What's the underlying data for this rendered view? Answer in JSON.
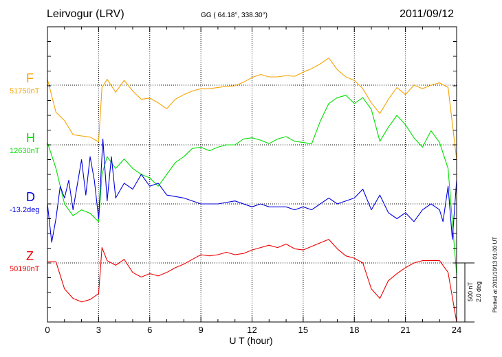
{
  "header": {
    "station": "Leirvogur (LRV)",
    "coords": "GG ( 64.18°, 338.30°)",
    "date": "2011/09/12"
  },
  "side_note": "Plotted at 2011/10/13 01:00 UT",
  "scale_bar": {
    "line1": "500 nT",
    "line2": "2.0 deg"
  },
  "colors": {
    "F": "#f5a300",
    "H": "#00e000",
    "D": "#0000dd",
    "Z": "#ee0000",
    "axis": "#000000",
    "grid": "#000000"
  },
  "chart_data": {
    "type": "line",
    "xlabel": "U T (hour)",
    "xlim": [
      0,
      24
    ],
    "xticks": [
      0,
      3,
      6,
      9,
      12,
      15,
      18,
      21,
      24
    ],
    "grid": "dotted",
    "channels": [
      {
        "name": "F",
        "baseline_label": "51750nT",
        "color": "#f5a300",
        "x": [
          0,
          0.5,
          1,
          1.5,
          2,
          2.5,
          3,
          3.2,
          3.5,
          4,
          4.5,
          5,
          5.5,
          6,
          6.5,
          7,
          7.5,
          8,
          8.5,
          9,
          9.5,
          10,
          10.5,
          11,
          11.5,
          12,
          12.5,
          13,
          13.5,
          14,
          14.5,
          15,
          15.5,
          16,
          16.5,
          17,
          17.5,
          18,
          18.5,
          19,
          19.5,
          20,
          20.5,
          21,
          21.5,
          22,
          22.5,
          23,
          23.5,
          24
        ],
        "values": [
          50,
          -230,
          -300,
          -420,
          -430,
          -440,
          -480,
          -20,
          50,
          -60,
          40,
          -50,
          -120,
          -110,
          -150,
          -200,
          -120,
          -80,
          -50,
          -30,
          -30,
          -20,
          -10,
          -5,
          25,
          65,
          90,
          70,
          70,
          80,
          75,
          110,
          140,
          180,
          230,
          130,
          70,
          40,
          -30,
          -150,
          -240,
          -120,
          -20,
          -80,
          0,
          -30,
          0,
          20,
          -20,
          -630
        ]
      },
      {
        "name": "H",
        "baseline_label": "12630nT",
        "color": "#00e000",
        "x": [
          0,
          0.5,
          1,
          1.5,
          2,
          2.5,
          3,
          3.2,
          3.5,
          4,
          4.5,
          5,
          5.5,
          6,
          6.5,
          7,
          7.5,
          8,
          8.5,
          9,
          9.5,
          10,
          10.5,
          11,
          11.5,
          12,
          12.5,
          13,
          13.5,
          14,
          14.5,
          15,
          15.5,
          16,
          16.5,
          17,
          17.5,
          18,
          18.5,
          19,
          19.5,
          20,
          20.5,
          21,
          21.5,
          22,
          22.5,
          23,
          23.5,
          24
        ],
        "values": [
          20,
          -200,
          -500,
          -600,
          -550,
          -580,
          -650,
          -250,
          -100,
          -200,
          -120,
          -200,
          -250,
          -280,
          -350,
          -250,
          -150,
          -100,
          -30,
          -20,
          -50,
          -20,
          0,
          0,
          50,
          60,
          40,
          10,
          50,
          70,
          30,
          20,
          10,
          200,
          350,
          400,
          420,
          350,
          400,
          300,
          30,
          150,
          250,
          170,
          60,
          -20,
          120,
          20,
          -200,
          -1100
        ]
      },
      {
        "name": "D",
        "baseline_label": "-13.2deg",
        "color": "#0000dd",
        "x": [
          0,
          0.25,
          0.5,
          0.75,
          1,
          1.25,
          1.5,
          2,
          2.25,
          2.5,
          2.75,
          3,
          3.25,
          3.5,
          3.75,
          4,
          4.5,
          5,
          5.5,
          6,
          6.5,
          7,
          8,
          9,
          10,
          11,
          12,
          12.5,
          13,
          14,
          14.5,
          15,
          15.5,
          16,
          16.5,
          17,
          18,
          18.5,
          19,
          19.5,
          20,
          20.5,
          21,
          21.5,
          22,
          22.5,
          23,
          23.2,
          23.5,
          23.75,
          24
        ],
        "values": [
          0.0,
          -1.3,
          -0.5,
          0.6,
          0.2,
          0.8,
          -0.2,
          1.5,
          0.3,
          1.6,
          0.8,
          -0.5,
          2.2,
          0.1,
          1.6,
          0.2,
          0.7,
          0.5,
          1.0,
          0.6,
          0.7,
          0.3,
          0.2,
          0.0,
          0.0,
          0.1,
          -0.1,
          0.0,
          -0.1,
          -0.1,
          -0.2,
          -0.1,
          -0.2,
          0.0,
          0.2,
          0.0,
          0.2,
          0.5,
          -0.2,
          0.3,
          -0.3,
          -0.5,
          -0.3,
          -0.6,
          -0.2,
          0.0,
          -0.2,
          -0.6,
          0.6,
          -1.2,
          0.8
        ]
      },
      {
        "name": "Z",
        "baseline_label": "50190nT",
        "color": "#ee0000",
        "x": [
          0,
          0.5,
          1,
          1.5,
          2,
          2.5,
          3,
          3.2,
          3.5,
          4,
          4.5,
          5,
          5.5,
          6,
          6.5,
          7,
          7.5,
          8,
          8.5,
          9,
          9.5,
          10,
          10.5,
          11,
          11.5,
          12,
          12.5,
          13,
          13.5,
          14,
          14.5,
          15,
          15.5,
          16,
          16.5,
          17,
          17.5,
          18,
          18.5,
          19,
          19.5,
          20,
          20.5,
          21,
          21.5,
          22,
          22.5,
          23,
          23.5,
          24
        ],
        "values": [
          10,
          10,
          -220,
          -300,
          -330,
          -310,
          -260,
          130,
          20,
          -20,
          30,
          -80,
          -120,
          -90,
          -110,
          -80,
          -40,
          -10,
          30,
          70,
          60,
          70,
          90,
          70,
          80,
          110,
          130,
          150,
          130,
          160,
          120,
          110,
          140,
          170,
          200,
          120,
          60,
          40,
          0,
          -220,
          -300,
          -150,
          -90,
          -40,
          0,
          20,
          20,
          20,
          -80,
          -550
        ]
      }
    ]
  }
}
